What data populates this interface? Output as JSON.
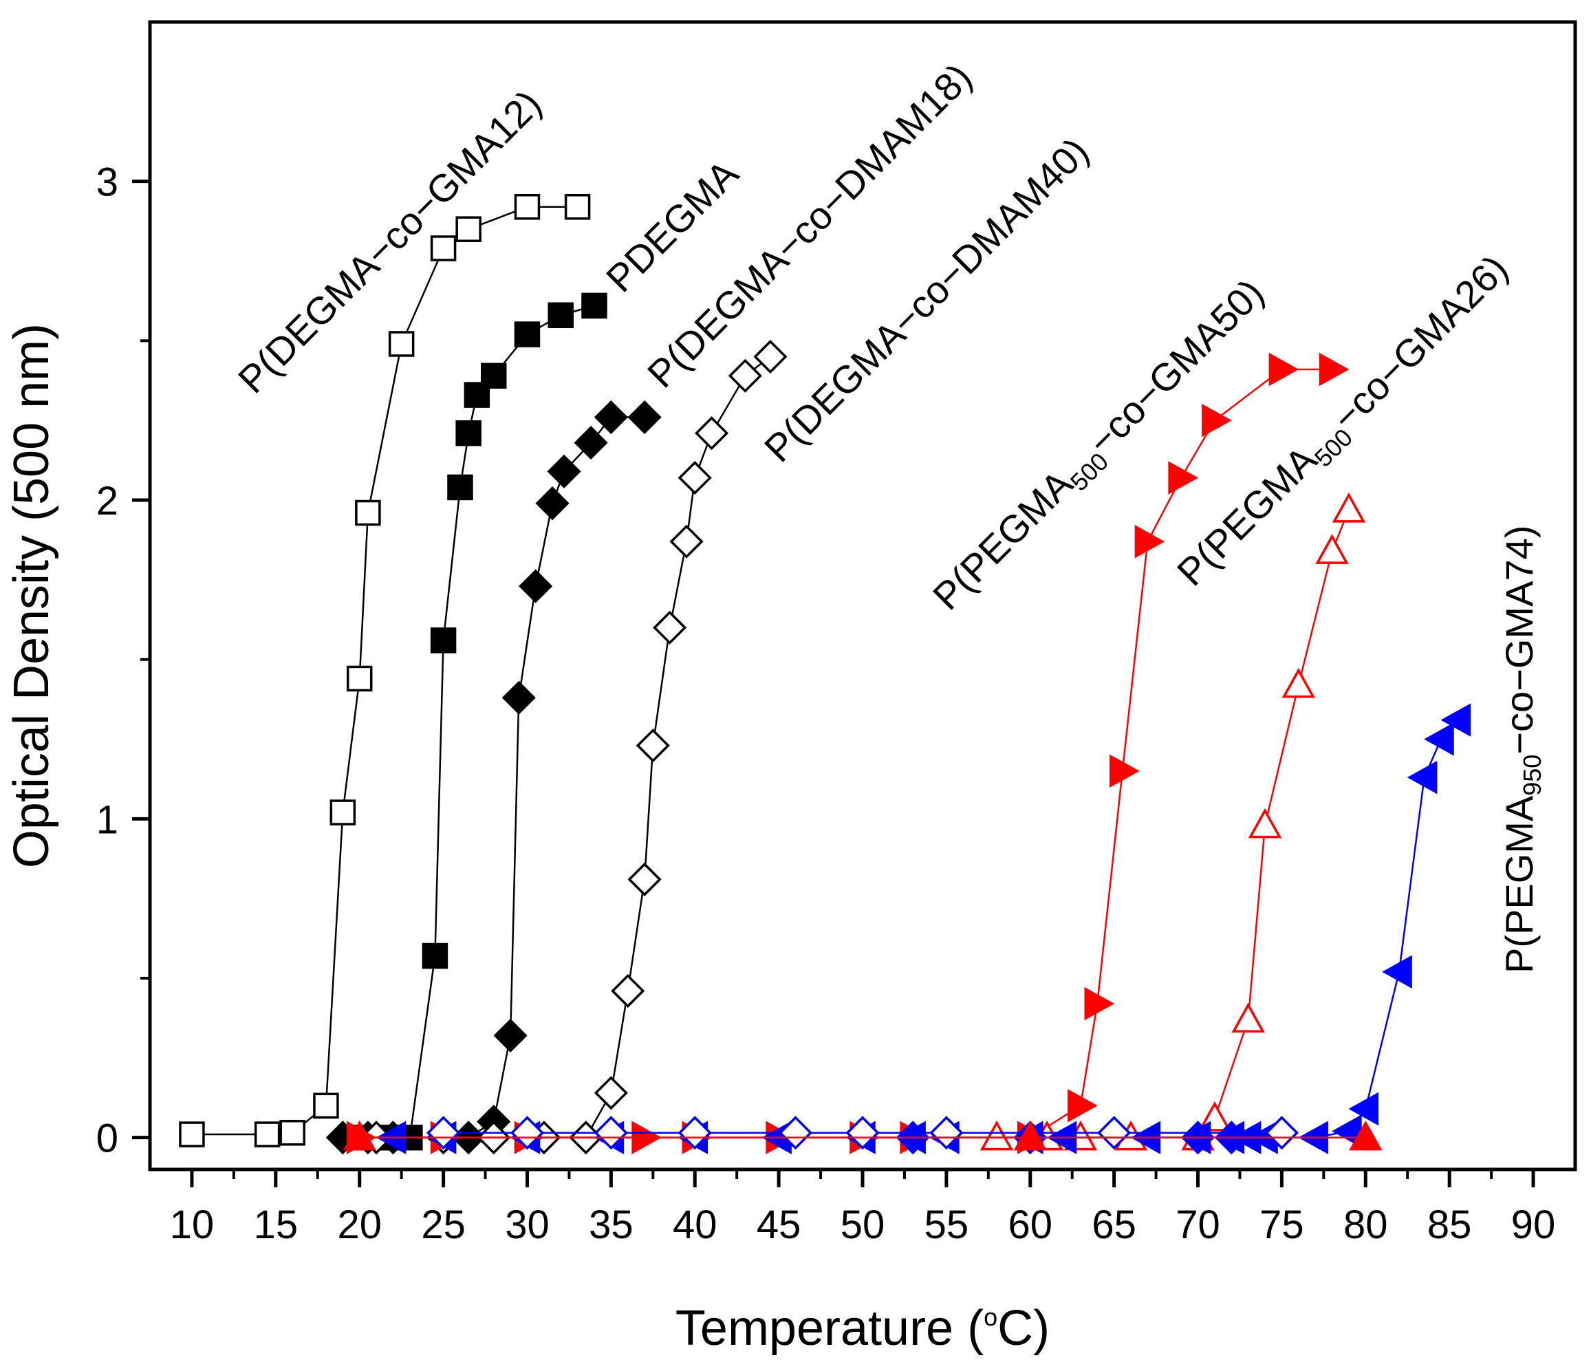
{
  "chart_data": {
    "type": "scatter",
    "title": "",
    "xlabel": "Temperature (oC)",
    "xlabel_parts": [
      "Temperature (",
      "o",
      "C)"
    ],
    "ylabel": "Optical Density (500 nm)",
    "xlim": [
      7.5,
      92.5
    ],
    "ylim": [
      -0.1,
      3.5
    ],
    "xticks": [
      10,
      15,
      20,
      25,
      30,
      35,
      40,
      45,
      50,
      55,
      60,
      65,
      70,
      75,
      80,
      85,
      90
    ],
    "yticks": [
      0,
      1,
      2,
      3
    ],
    "grid": false,
    "legend": "none (series labelled inline)",
    "colors": {
      "black": "#000000",
      "red": "#ff0000",
      "blue": "#0000ff"
    },
    "series": [
      {
        "name": "P(DEGMA-co-GMA12)",
        "label_parts": [
          "P(DEGMA−co−GMA12)"
        ],
        "marker": "square-open",
        "color": "#000000",
        "x": [
          10,
          14.5,
          16,
          18,
          19,
          20,
          20.5,
          22.5,
          25,
          26.5,
          30,
          33
        ],
        "y": [
          0.01,
          0.01,
          0.015,
          0.1,
          1.02,
          1.44,
          1.96,
          2.49,
          2.79,
          2.85,
          2.92,
          2.92
        ]
      },
      {
        "name": "PDEGMA",
        "label_parts": [
          "PDEGMA"
        ],
        "marker": "square-filled",
        "color": "#000000",
        "x": [
          20,
          21,
          22,
          23,
          24.5,
          25,
          26,
          26.5,
          27,
          28,
          30,
          32,
          34
        ],
        "y": [
          0,
          0,
          0,
          0,
          0.57,
          1.56,
          2.04,
          2.21,
          2.33,
          2.39,
          2.52,
          2.58,
          2.61
        ],
        "line_from_index": 3
      },
      {
        "name": "P(DEGMA-co-DMAM18)",
        "label_parts": [
          "P(DEGMA−co−DMAM18)"
        ],
        "marker": "diamond-filled",
        "color": "#000000",
        "x": [
          19,
          20.5,
          22,
          25,
          26.5,
          28,
          29,
          29.5,
          30.5,
          31.5,
          32.2,
          33.8,
          35,
          37
        ],
        "y": [
          0,
          0,
          0,
          0,
          0,
          0.05,
          0.32,
          1.38,
          1.73,
          1.99,
          2.09,
          2.18,
          2.26,
          2.26
        ]
      },
      {
        "name": "P(DEGMA-co-DMAM40)",
        "label_parts": [
          "P(DEGMA−co−DMAM40)"
        ],
        "marker": "diamond-open",
        "color": "#000000",
        "x": [
          21,
          25,
          28,
          31,
          33.5,
          35,
          36,
          37,
          37.5,
          38.5,
          39.5,
          40,
          41,
          43,
          44.5
        ],
        "y": [
          0,
          0,
          0,
          0,
          0,
          0.14,
          0.46,
          0.81,
          1.23,
          1.6,
          1.87,
          2.07,
          2.21,
          2.39,
          2.45
        ]
      },
      {
        "name": "P(PEGMA500-co-GMA50)",
        "label_parts": [
          "P(PEGMA",
          "500",
          "−co−GMA50)"
        ],
        "marker": "triangle-right-filled",
        "color": "#ff0000",
        "x": [
          20,
          25,
          30,
          37,
          40,
          45,
          50,
          53,
          60,
          63,
          64,
          65.5,
          67,
          69,
          71,
          75,
          78
        ],
        "y": [
          0,
          0,
          0,
          0,
          0,
          0,
          0,
          0,
          0,
          0.1,
          0.42,
          1.15,
          1.87,
          2.07,
          2.25,
          2.41,
          2.41
        ]
      },
      {
        "name": "P(PEGMA500-co-GMA26)",
        "label_parts": [
          "P(PEGMA",
          "500",
          "−co−GMA26)"
        ],
        "marker": "triangle-up-open",
        "color": "#ff0000",
        "x": [
          58,
          61,
          63,
          66,
          70,
          71,
          73,
          74,
          76,
          78,
          79
        ],
        "y": [
          0,
          0,
          0,
          0,
          0,
          0.06,
          0.37,
          0.98,
          1.42,
          1.84,
          1.97
        ]
      },
      {
        "name": "P(PEGMA950-co-GMA74)",
        "label_parts": [
          "P(PEGMA",
          "950",
          "−co−GMA74)"
        ],
        "marker": "triangle-left-filled",
        "color": "#0000ff",
        "x": [
          22,
          25,
          30,
          35,
          40,
          45,
          50,
          53,
          55,
          60,
          62,
          67,
          70,
          72,
          73,
          74,
          77,
          79,
          80,
          82,
          83.5,
          84.5,
          85.5
        ],
        "y": [
          0,
          0,
          0,
          0,
          0,
          0,
          0,
          0,
          0,
          0,
          0,
          0,
          0,
          0,
          0,
          0,
          0,
          0.02,
          0.09,
          0.52,
          1.13,
          1.25,
          1.31
        ]
      },
      {
        "name": "blue open diamonds (baseline)",
        "label_parts": [],
        "marker": "diamond-open",
        "color": "#0000ff",
        "x": [
          25,
          30,
          35,
          40,
          46,
          50,
          55,
          65,
          75
        ],
        "y": [
          0.015,
          0.015,
          0.015,
          0.015,
          0.015,
          0.015,
          0.015,
          0.015,
          0.015
        ]
      },
      {
        "name": "blue filled diamonds (baseline)",
        "label_parts": [],
        "marker": "diamond-filled",
        "color": "#0000ff",
        "x": [
          53,
          60,
          70,
          72
        ],
        "y": [
          0,
          0,
          0,
          0
        ]
      },
      {
        "name": "red filled triangles (baseline)",
        "label_parts": [],
        "marker": "triangle-up-filled",
        "color": "#ff0000",
        "x": [
          20,
          60,
          80
        ],
        "y": [
          0,
          0,
          0
        ]
      }
    ]
  }
}
